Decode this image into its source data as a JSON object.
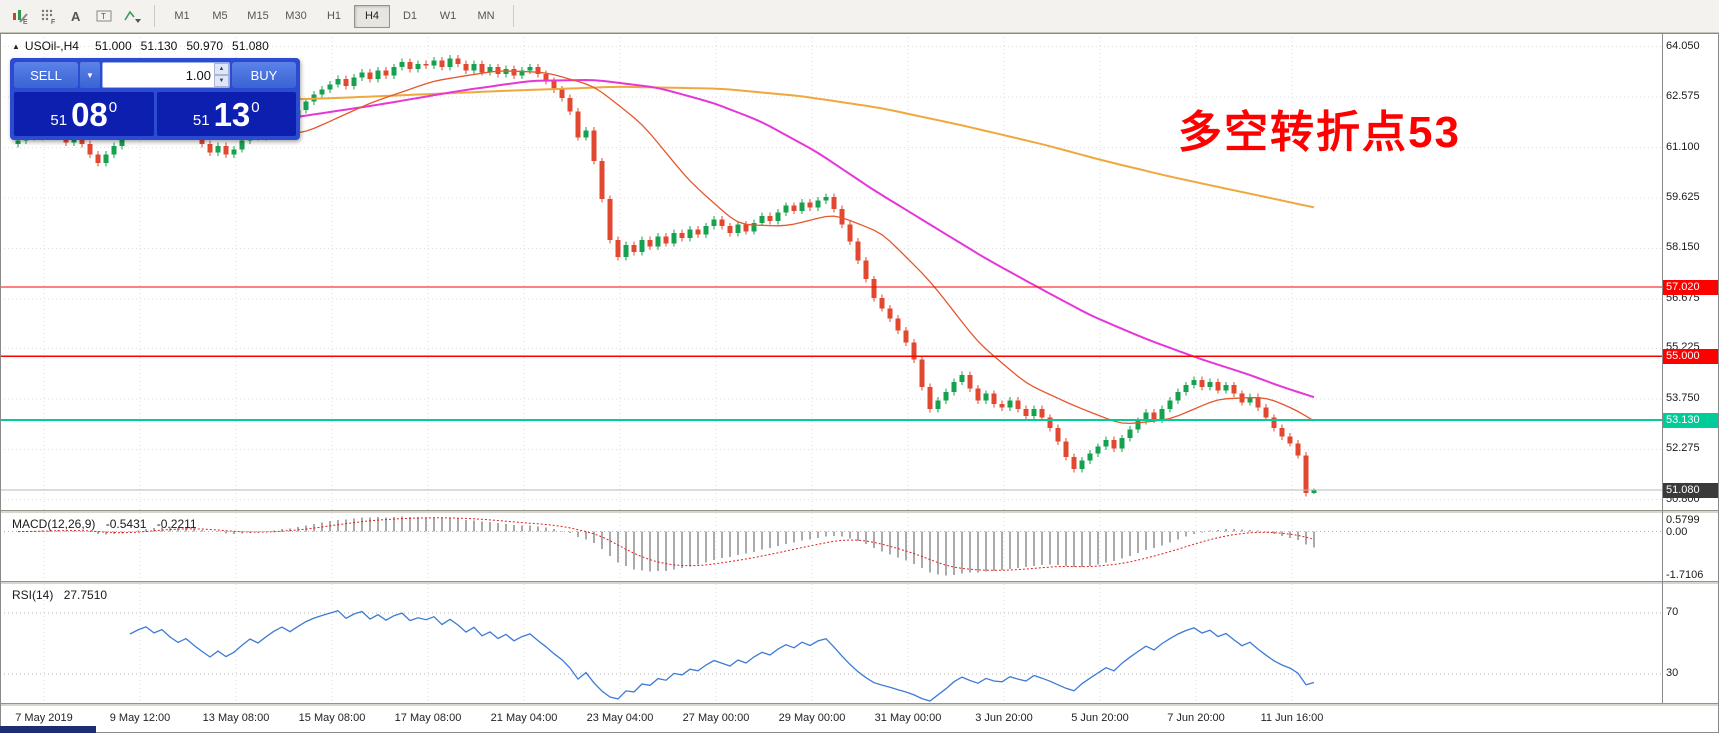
{
  "toolbar": {
    "icons": [
      {
        "name": "chart-edit-icon",
        "badge": "E"
      },
      {
        "name": "grid-icon",
        "badge": "F"
      },
      {
        "name": "text-icon",
        "badge": "A"
      },
      {
        "name": "textbox-icon",
        "badge": "T"
      },
      {
        "name": "crosshair-dropdown-icon",
        "badge": ""
      }
    ],
    "timeframes": [
      "M1",
      "M5",
      "M15",
      "M30",
      "H1",
      "H4",
      "D1",
      "W1",
      "MN"
    ],
    "active_timeframe": "H4"
  },
  "symbol_bar": {
    "collapse_marker": "▲",
    "symbol": "USOil-,H4",
    "open": "51.000",
    "high": "51.130",
    "low": "50.970",
    "close": "51.080"
  },
  "trade_panel": {
    "sell_label": "SELL",
    "buy_label": "BUY",
    "volume": "1.00",
    "dropdown_caret": "▼",
    "spinner_up": "▲",
    "spinner_down": "▼",
    "bid": {
      "small": "51",
      "big": "08",
      "sup": "0"
    },
    "ask": {
      "small": "51",
      "big": "13",
      "sup": "0"
    }
  },
  "annotation": {
    "text": "多空转折点53",
    "color": "#ff0000"
  },
  "price_axis": {
    "labels": [
      "64.050",
      "62.575",
      "61.100",
      "59.625",
      "58.150",
      "56.675",
      "55.225",
      "53.750",
      "52.275",
      "50.800"
    ]
  },
  "hlines": [
    {
      "label": "57.020",
      "price": 57.02,
      "line_color": "#ff0000",
      "tag_bg": "#ff0000"
    },
    {
      "label": "55.000",
      "price": 55.0,
      "line_color": "#ff0000",
      "tag_bg": "#ff0000"
    },
    {
      "label": "53.130",
      "price": 53.13,
      "line_color": "#00cc99",
      "tag_bg": "#00cc99"
    },
    {
      "label": "51.080",
      "price": 51.08,
      "line_color": "#b8b8b8",
      "tag_bg": "#3a3a3a"
    }
  ],
  "macd_panel": {
    "title": "MACD(12,26,9)",
    "value1": "-0.5431",
    "value2": "-0.2211",
    "params": [
      12,
      26,
      9
    ],
    "axis_labels": [
      {
        "text": "0.5799",
        "value": 0.5799
      },
      {
        "text": "0.00",
        "value": 0
      },
      {
        "text": "-1.7106",
        "value": -1.7106
      }
    ]
  },
  "rsi_panel": {
    "title": "RSI(14)",
    "value": "27.7510",
    "period": 14,
    "levels": [
      {
        "text": "70",
        "value": 70
      },
      {
        "text": "30",
        "value": 30
      }
    ]
  },
  "time_axis": {
    "labels": [
      "7 May 2019",
      "9 May 12:00",
      "13 May 08:00",
      "15 May 08:00",
      "17 May 08:00",
      "21 May 04:00",
      "23 May 04:00",
      "27 May 00:00",
      "29 May 00:00",
      "31 May 00:00",
      "3 Jun 20:00",
      "5 Jun 20:00",
      "7 Jun 20:00",
      "11 Jun 16:00"
    ]
  },
  "colors": {
    "up_candle": "#15a14e",
    "down_candle": "#e2472f",
    "ma_slow": "#efa83c",
    "ma_mid": "#e636d8",
    "ma_fast": "#e6572e",
    "macd_hist": "#aaaaaa",
    "macd_signal": "#e01f1f",
    "rsi_line": "#3d7bd6",
    "grid": "#dcdcdc",
    "level_line": "#b4b4b4",
    "annotation_red": "#ff0000",
    "panel_blue": "#2b4bd0",
    "price_navy": "#0d1fae",
    "button_blue": "#4a72e0"
  },
  "chart_data": {
    "type": "candlestick",
    "symbol": "USOil-,H4",
    "price_range": [
      64.45,
      50.5
    ],
    "open_first": 61.2,
    "wick_pad": 0.1,
    "last_candle_ohlc": [
      51.0,
      51.13,
      50.97,
      51.08
    ],
    "closes": [
      61.3,
      61.55,
      61.4,
      61.5,
      61.7,
      61.5,
      61.25,
      61.45,
      61.2,
      60.9,
      60.65,
      60.9,
      61.15,
      61.45,
      61.7,
      61.9,
      62.05,
      61.85,
      62.0,
      61.75,
      61.55,
      61.7,
      61.45,
      61.2,
      60.95,
      61.15,
      60.9,
      61.05,
      61.3,
      61.55,
      61.4,
      61.65,
      61.9,
      62.1,
      61.95,
      62.2,
      62.45,
      62.65,
      62.8,
      62.95,
      63.1,
      62.9,
      63.15,
      63.3,
      63.1,
      63.35,
      63.2,
      63.45,
      63.6,
      63.4,
      63.55,
      63.5,
      63.65,
      63.45,
      63.7,
      63.55,
      63.35,
      63.55,
      63.3,
      63.45,
      63.25,
      63.4,
      63.2,
      63.35,
      63.45,
      63.25,
      63.05,
      62.8,
      62.55,
      62.15,
      61.4,
      61.6,
      60.7,
      59.6,
      58.4,
      57.9,
      58.25,
      58.05,
      58.4,
      58.2,
      58.5,
      58.3,
      58.6,
      58.45,
      58.7,
      58.55,
      58.8,
      59.0,
      58.8,
      58.6,
      58.85,
      58.65,
      58.9,
      59.1,
      58.95,
      59.2,
      59.4,
      59.25,
      59.5,
      59.35,
      59.55,
      59.65,
      59.3,
      58.85,
      58.35,
      57.8,
      57.25,
      56.7,
      56.4,
      56.1,
      55.75,
      55.4,
      54.9,
      54.1,
      53.45,
      53.7,
      53.95,
      54.25,
      54.45,
      54.05,
      53.7,
      53.9,
      53.6,
      53.5,
      53.7,
      53.45,
      53.25,
      53.45,
      53.2,
      52.9,
      52.5,
      52.05,
      51.7,
      51.95,
      52.15,
      52.35,
      52.55,
      52.3,
      52.6,
      52.85,
      53.1,
      53.35,
      53.15,
      53.45,
      53.7,
      53.95,
      54.15,
      54.3,
      54.1,
      54.25,
      54.0,
      54.15,
      53.9,
      53.65,
      53.8,
      53.5,
      53.2,
      52.9,
      52.65,
      52.45,
      52.1,
      51.0,
      51.08
    ],
    "moving_averages": [
      {
        "name": "ma-slow",
        "color": "#efa83c",
        "width": 2,
        "anchors": [
          [
            0,
            62.25
          ],
          [
            20,
            62.4
          ],
          [
            40,
            62.55
          ],
          [
            60,
            62.75
          ],
          [
            75,
            62.88
          ],
          [
            88,
            62.82
          ],
          [
            98,
            62.6
          ],
          [
            108,
            62.25
          ],
          [
            118,
            61.75
          ],
          [
            128,
            61.2
          ],
          [
            136,
            60.7
          ],
          [
            144,
            60.25
          ],
          [
            152,
            59.85
          ],
          [
            158,
            59.55
          ],
          [
            162,
            59.35
          ]
        ]
      },
      {
        "name": "ma-mid",
        "color": "#e636d8",
        "width": 2,
        "anchors": [
          [
            0,
            61.4
          ],
          [
            15,
            61.55
          ],
          [
            25,
            61.72
          ],
          [
            35,
            62.0
          ],
          [
            45,
            62.35
          ],
          [
            55,
            62.75
          ],
          [
            64,
            63.05
          ],
          [
            72,
            63.08
          ],
          [
            80,
            62.85
          ],
          [
            87,
            62.4
          ],
          [
            93,
            61.85
          ],
          [
            100,
            60.95
          ],
          [
            107,
            59.85
          ],
          [
            114,
            58.85
          ],
          [
            121,
            57.85
          ],
          [
            128,
            56.95
          ],
          [
            134,
            56.2
          ],
          [
            141,
            55.5
          ],
          [
            148,
            54.9
          ],
          [
            154,
            54.45
          ],
          [
            158,
            54.1
          ],
          [
            162,
            53.8
          ]
        ]
      },
      {
        "name": "ma-fast",
        "color": "#e6572e",
        "width": 1.3,
        "anchors": [
          [
            0,
            61.35
          ],
          [
            10,
            61.4
          ],
          [
            20,
            61.6
          ],
          [
            28,
            61.35
          ],
          [
            36,
            61.55
          ],
          [
            44,
            62.4
          ],
          [
            52,
            63.05
          ],
          [
            60,
            63.35
          ],
          [
            66,
            63.3
          ],
          [
            72,
            62.9
          ],
          [
            78,
            61.8
          ],
          [
            84,
            60.1
          ],
          [
            90,
            58.85
          ],
          [
            96,
            58.8
          ],
          [
            102,
            59.15
          ],
          [
            108,
            58.6
          ],
          [
            114,
            57.2
          ],
          [
            120,
            55.4
          ],
          [
            126,
            54.2
          ],
          [
            132,
            53.55
          ],
          [
            138,
            53.0
          ],
          [
            144,
            53.15
          ],
          [
            150,
            53.75
          ],
          [
            156,
            53.8
          ],
          [
            160,
            53.4
          ],
          [
            162,
            53.1
          ]
        ]
      }
    ]
  }
}
